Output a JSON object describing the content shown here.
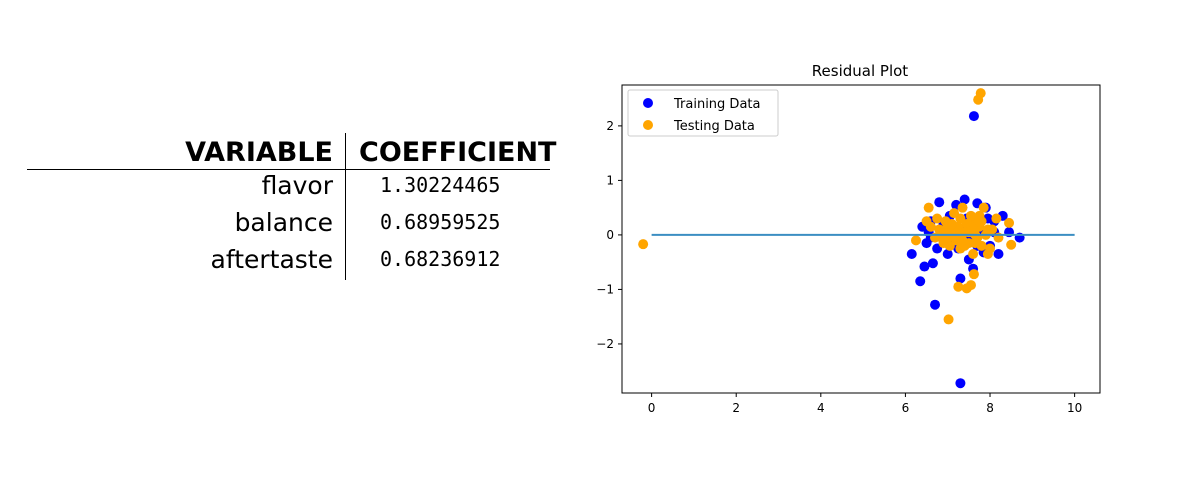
{
  "table": {
    "headers": {
      "variable": "VARIABLE",
      "coefficient": "COEFFICIENT"
    },
    "rows": [
      {
        "variable": "flavor",
        "coefficient": "1.30224465"
      },
      {
        "variable": "balance",
        "coefficient": "0.68959525"
      },
      {
        "variable": "aftertaste",
        "coefficient": "0.68236912"
      }
    ]
  },
  "chart_data": {
    "type": "scatter",
    "title": "Residual Plot",
    "xlabel": "",
    "ylabel": "",
    "xlim": [
      -0.7,
      10.6
    ],
    "ylim": [
      -2.9,
      2.75
    ],
    "xticks": [
      0,
      2,
      4,
      6,
      8,
      10
    ],
    "yticks": [
      -2,
      -1,
      0,
      1,
      2
    ],
    "legend_position": "top-left",
    "grid": false,
    "hline": {
      "y": 0,
      "xmin": 0,
      "xmax": 10,
      "color": "#3b8ec2"
    },
    "series": [
      {
        "name": "Training Data",
        "color": "#0000ff",
        "points": [
          [
            7.62,
            2.18
          ],
          [
            7.3,
            -2.72
          ],
          [
            6.7,
            -1.28
          ],
          [
            6.35,
            -0.85
          ],
          [
            6.15,
            -0.35
          ],
          [
            6.65,
            -0.52
          ],
          [
            6.45,
            -0.58
          ],
          [
            7.3,
            -0.8
          ],
          [
            8.7,
            -0.05
          ],
          [
            8.3,
            0.35
          ],
          [
            8.2,
            -0.35
          ],
          [
            7.6,
            -0.62
          ],
          [
            6.8,
            0.6
          ],
          [
            7.2,
            0.55
          ],
          [
            7.4,
            0.65
          ],
          [
            6.6,
            0.25
          ],
          [
            6.4,
            0.15
          ],
          [
            6.5,
            -0.15
          ],
          [
            7.0,
            -0.35
          ],
          [
            7.5,
            -0.45
          ],
          [
            7.85,
            -0.32
          ],
          [
            8.1,
            0.25
          ],
          [
            8.45,
            0.05
          ],
          [
            7.9,
            0.5
          ],
          [
            7.7,
            0.58
          ],
          [
            6.9,
            0.2
          ],
          [
            7.15,
            -0.15
          ],
          [
            7.65,
            0.2
          ],
          [
            6.75,
            -0.25
          ],
          [
            7.05,
            0.35
          ],
          [
            7.25,
            -0.25
          ],
          [
            7.8,
            0.05
          ],
          [
            8.0,
            -0.2
          ],
          [
            6.55,
            0.05
          ],
          [
            7.45,
            0.3
          ],
          [
            6.95,
            -0.1
          ],
          [
            7.35,
            0.1
          ],
          [
            7.55,
            -0.1
          ],
          [
            8.1,
            0.05
          ],
          [
            6.85,
            0.1
          ],
          [
            7.1,
            0.05
          ],
          [
            7.7,
            -0.2
          ],
          [
            7.95,
            0.3
          ],
          [
            6.6,
            -0.05
          ],
          [
            7.4,
            -0.05
          ]
        ]
      },
      {
        "name": "Testing Data",
        "color": "#ffa500",
        "points": [
          [
            -0.2,
            -0.17
          ],
          [
            7.78,
            2.6
          ],
          [
            7.72,
            2.48
          ],
          [
            7.02,
            -1.55
          ],
          [
            7.25,
            -0.95
          ],
          [
            7.45,
            -0.98
          ],
          [
            7.55,
            -0.92
          ],
          [
            7.62,
            -0.72
          ],
          [
            6.55,
            0.5
          ],
          [
            6.25,
            -0.1
          ],
          [
            8.45,
            0.22
          ],
          [
            8.5,
            -0.18
          ],
          [
            7.6,
            0.25
          ],
          [
            7.3,
            0.3
          ],
          [
            6.95,
            0.25
          ],
          [
            6.8,
            0.1
          ],
          [
            7.1,
            0.15
          ],
          [
            7.4,
            0.05
          ],
          [
            7.75,
            0.15
          ],
          [
            7.9,
            0.0
          ],
          [
            8.05,
            0.1
          ],
          [
            6.7,
            -0.05
          ],
          [
            6.9,
            -0.15
          ],
          [
            7.2,
            -0.1
          ],
          [
            7.5,
            -0.15
          ],
          [
            7.8,
            -0.2
          ],
          [
            8.0,
            -0.25
          ],
          [
            6.6,
            0.15
          ],
          [
            7.0,
            0.05
          ],
          [
            7.3,
            -0.25
          ],
          [
            7.65,
            0.0
          ],
          [
            7.35,
            0.5
          ],
          [
            7.85,
            0.5
          ],
          [
            8.15,
            0.3
          ],
          [
            6.5,
            0.25
          ],
          [
            7.15,
            0.4
          ],
          [
            7.55,
            0.35
          ],
          [
            7.95,
            -0.35
          ],
          [
            7.25,
            0.15
          ],
          [
            7.7,
            -0.05
          ],
          [
            6.85,
            -0.05
          ],
          [
            7.45,
            0.2
          ],
          [
            7.05,
            -0.2
          ],
          [
            7.6,
            -0.35
          ],
          [
            8.2,
            -0.05
          ],
          [
            7.15,
            0.0
          ],
          [
            7.5,
            0.05
          ],
          [
            7.8,
            0.25
          ],
          [
            6.75,
            0.3
          ],
          [
            7.4,
            -0.2
          ],
          [
            7.95,
            0.1
          ],
          [
            7.25,
            0.05
          ],
          [
            7.0,
            -0.05
          ],
          [
            7.55,
            0.15
          ],
          [
            7.65,
            -0.15
          ],
          [
            6.95,
            0.1
          ],
          [
            7.35,
            -0.1
          ],
          [
            7.75,
            0.35
          ],
          [
            7.1,
            0.2
          ],
          [
            7.6,
            0.1
          ]
        ]
      }
    ]
  }
}
